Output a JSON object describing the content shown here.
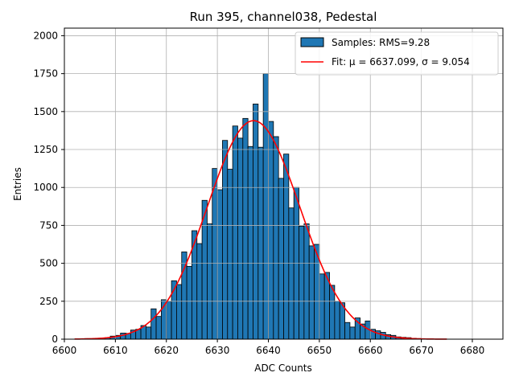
{
  "chart_data": {
    "type": "bar",
    "title": "Run 395, channel038, Pedestal",
    "xlabel": "ADC Counts",
    "ylabel": "Entries",
    "xlim": [
      6600,
      6686
    ],
    "ylim": [
      0,
      2050
    ],
    "grid": true,
    "legend_position": "top-right",
    "xticks": [
      6600,
      6610,
      6620,
      6630,
      6640,
      6650,
      6660,
      6670,
      6680
    ],
    "yticks": [
      0,
      250,
      500,
      750,
      1000,
      1250,
      1500,
      1750,
      2000
    ],
    "histogram": {
      "name": "Samples: RMS=9.28",
      "color": "#1f77b4",
      "edgecolor": "#000000",
      "bin_width": 1,
      "bins": [
        [
          6603,
          3
        ],
        [
          6604,
          4
        ],
        [
          6605,
          3
        ],
        [
          6606,
          5
        ],
        [
          6607,
          7
        ],
        [
          6608,
          10
        ],
        [
          6609,
          20
        ],
        [
          6610,
          25
        ],
        [
          6611,
          40
        ],
        [
          6612,
          38
        ],
        [
          6613,
          60
        ],
        [
          6614,
          65
        ],
        [
          6615,
          90
        ],
        [
          6616,
          80
        ],
        [
          6617,
          200
        ],
        [
          6618,
          150
        ],
        [
          6619,
          260
        ],
        [
          6620,
          250
        ],
        [
          6621,
          385
        ],
        [
          6622,
          360
        ],
        [
          6623,
          575
        ],
        [
          6624,
          480
        ],
        [
          6625,
          715
        ],
        [
          6626,
          630
        ],
        [
          6627,
          915
        ],
        [
          6628,
          760
        ],
        [
          6629,
          1125
        ],
        [
          6630,
          985
        ],
        [
          6631,
          1310
        ],
        [
          6632,
          1120
        ],
        [
          6633,
          1405
        ],
        [
          6634,
          1325
        ],
        [
          6635,
          1455
        ],
        [
          6636,
          1270
        ],
        [
          6637,
          1550
        ],
        [
          6638,
          1265
        ],
        [
          6639,
          1750
        ],
        [
          6640,
          1435
        ],
        [
          6641,
          1335
        ],
        [
          6642,
          1060
        ],
        [
          6643,
          1220
        ],
        [
          6644,
          865
        ],
        [
          6645,
          1000
        ],
        [
          6646,
          745
        ],
        [
          6647,
          760
        ],
        [
          6648,
          615
        ],
        [
          6649,
          625
        ],
        [
          6650,
          430
        ],
        [
          6651,
          440
        ],
        [
          6652,
          355
        ],
        [
          6653,
          250
        ],
        [
          6654,
          240
        ],
        [
          6655,
          110
        ],
        [
          6656,
          80
        ],
        [
          6657,
          140
        ],
        [
          6658,
          100
        ],
        [
          6659,
          120
        ],
        [
          6660,
          65
        ],
        [
          6661,
          55
        ],
        [
          6662,
          45
        ],
        [
          6663,
          30
        ],
        [
          6664,
          25
        ],
        [
          6665,
          15
        ],
        [
          6666,
          12
        ],
        [
          6667,
          10
        ],
        [
          6668,
          6
        ],
        [
          6669,
          4
        ],
        [
          6670,
          3
        ],
        [
          6671,
          2
        ]
      ]
    },
    "fit": {
      "name": "Fit: μ = 6637.099, σ = 9.054",
      "color": "#ff0000",
      "mu": 6637.099,
      "sigma": 9.054,
      "amplitude": 1440,
      "x_range": [
        6602,
        6675
      ]
    }
  }
}
